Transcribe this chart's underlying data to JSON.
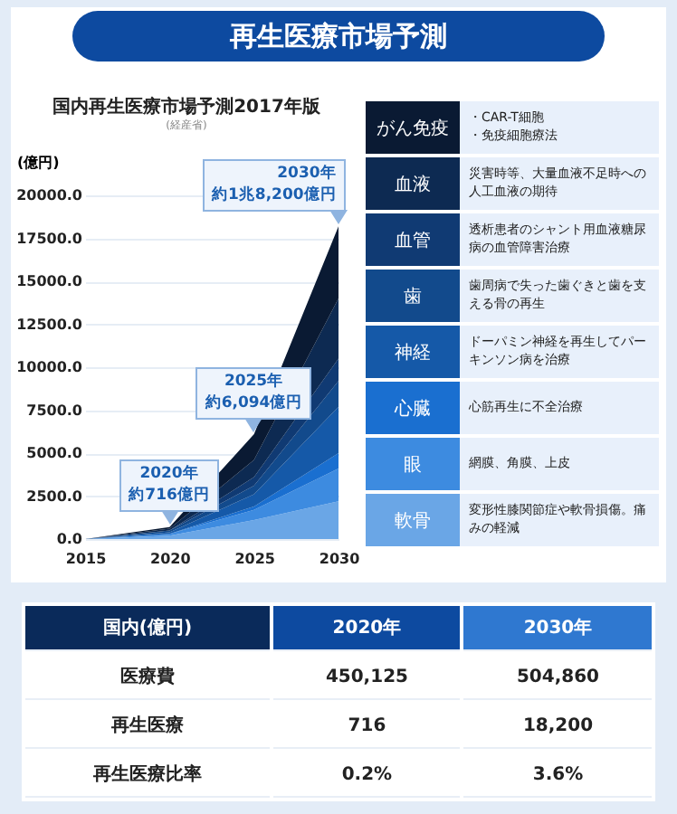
{
  "chart_data": [
    {
      "type": "area",
      "title": "再生医療市場予測",
      "subtitle": "国内再生医療市場予測2017年版",
      "ylabel": "(億円)",
      "stacked": true,
      "legend": "right",
      "grid": "y",
      "x": [
        2015,
        2020,
        2025,
        2030
      ],
      "xlim": [
        2015,
        2030
      ],
      "xticks": [
        2015,
        2020,
        2025,
        2030
      ],
      "ylim": [
        0,
        20000
      ],
      "yticks": [
        {
          "value": 0,
          "label": "0.0"
        },
        {
          "value": 2500,
          "label": "2500.0"
        },
        {
          "value": 5000,
          "label": "5000.0"
        },
        {
          "value": 7500,
          "label": "7500.0"
        },
        {
          "value": 10000,
          "label": "10000.0"
        },
        {
          "value": 12500,
          "label": "12500.0"
        },
        {
          "value": 15000,
          "label": "15000.0"
        },
        {
          "value": 17500,
          "label": "17500.0"
        },
        {
          "value": 20000,
          "label": "20000.0"
        }
      ],
      "series": [
        {
          "name": "軟骨",
          "color": "#6aa6e6",
          "values": [
            0,
            200,
            1100,
            2200
          ]
        },
        {
          "name": "眼",
          "color": "#3d8be0",
          "values": [
            0,
            100,
            600,
            1900
          ]
        },
        {
          "name": "心臓",
          "color": "#1a6fd0",
          "values": [
            0,
            0,
            200,
            900
          ]
        },
        {
          "name": "神経",
          "color": "#1559a8",
          "values": [
            0,
            100,
            700,
            2700
          ]
        },
        {
          "name": "歯",
          "color": "#124a8c",
          "values": [
            0,
            100,
            500,
            1500
          ]
        },
        {
          "name": "血管",
          "color": "#103a73",
          "values": [
            0,
            0,
            500,
            1300
          ]
        },
        {
          "name": "血液",
          "color": "#0d2a52",
          "values": [
            0,
            100,
            1000,
            3500
          ]
        },
        {
          "name": "がん免疫",
          "color": "#0a1a33",
          "values": [
            0,
            100,
            1500,
            4200
          ]
        }
      ],
      "annotations": [
        "(経産省)",
        {
          "text": "2020年",
          "x": 2020,
          "y": 716
        },
        {
          "text": "約716億円",
          "x": 2020,
          "y": 716
        },
        {
          "text": "2025年",
          "x": 2025,
          "y": 6094
        },
        {
          "text": "約6,094億円",
          "x": 2025,
          "y": 6094
        },
        {
          "text": "2030年",
          "x": 2030,
          "y": 18200
        },
        {
          "text": "約1兆8,200億円",
          "x": 2030,
          "y": 18200
        },
        "・CAR-T細胞・免疫細胞療法",
        "災害時等、大量血液不足時への人工血液の期待",
        "透析患者のシャント用血液糖尿病の血管障害治療",
        "歯周病で失った歯ぐきと歯を支える骨の再生",
        "ドーパミン神経を再生してパーキンソン病を治療",
        "心筋再生に不全治療",
        "網膜、角膜、上皮",
        "変形性膝関節症や軟骨損傷。痛みの軽減"
      ]
    },
    {
      "type": "other",
      "annotations": [
        "国内(億円)",
        "2020年",
        "2030年",
        "医療費",
        "450,125",
        "504,860",
        "再生医療",
        "716",
        "18,200",
        "再生医療比率",
        "0.2%",
        "3.6%"
      ]
    }
  ]
}
